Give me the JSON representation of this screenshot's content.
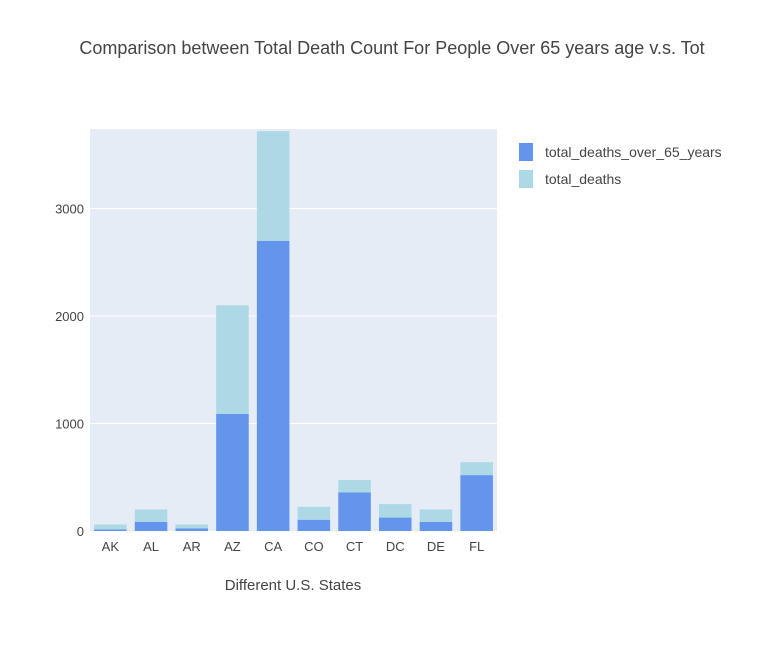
{
  "chart_data": {
    "type": "bar",
    "barmode": "stack",
    "title": "Comparison between Total Death Count For People Over 65 years age v.s. Tot",
    "xlabel": "Different U.S. States",
    "ylabel": "",
    "categories": [
      "AK",
      "AL",
      "AR",
      "AZ",
      "CA",
      "CO",
      "CT",
      "DC",
      "DE",
      "FL"
    ],
    "series": [
      {
        "name": "total_deaths_over_65_years",
        "color": "#6495ED",
        "values": [
          15,
          85,
          25,
          1090,
          2700,
          105,
          360,
          125,
          85,
          520
        ]
      },
      {
        "name": "total_deaths",
        "color": "#ADD8E6",
        "values": [
          45,
          115,
          35,
          1010,
          1020,
          120,
          115,
          125,
          115,
          120
        ]
      }
    ],
    "ylim": [
      0,
      3740
    ],
    "yticks": [
      0,
      1000,
      2000,
      3000
    ],
    "grid": true,
    "legend_position": "top-right",
    "plot_background": "#E5ECF6"
  }
}
